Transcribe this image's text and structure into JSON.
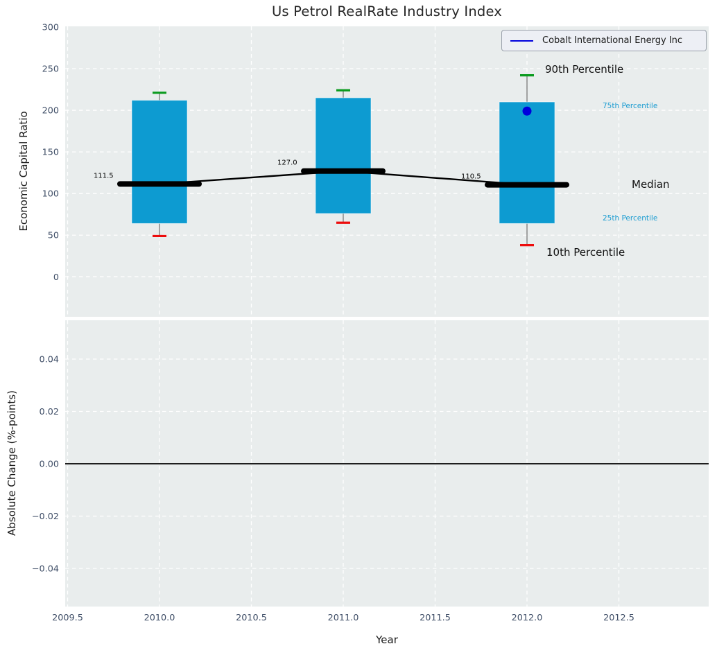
{
  "figure": {
    "title": "Us Petrol RealRate Industry Index"
  },
  "legend": {
    "label": "Cobalt International Energy Inc"
  },
  "annotations": {
    "p90": "90th Percentile",
    "p75": "75th Percentile",
    "median": "Median",
    "p25": "25th Percentile",
    "p10": "10th Percentile"
  },
  "colors": {
    "plot_bg": "#e9eded",
    "grid": "#ffffff",
    "tick_label": "#3e4d66",
    "box_fill": "#0d9bd1",
    "box_edge": "rgba(255,255,255,0.55)",
    "whisker": "#787878",
    "cap_high": "#0a9b1e",
    "cap_low": "#ed0c0c",
    "median_line": "#000000",
    "company": "#0000dd",
    "zero_line": "#000000",
    "percentile_text": "#1b9cd1"
  },
  "chart_data": [
    {
      "type": "boxplot",
      "title": "Us Petrol RealRate Industry Index",
      "ylabel": "Economic Capital Ratio",
      "categories": [
        2010,
        2011,
        2012
      ],
      "series": [
        {
          "name": "90th Percentile",
          "values": [
            221,
            224,
            242
          ]
        },
        {
          "name": "75th Percentile",
          "values": [
            212,
            215,
            210
          ]
        },
        {
          "name": "Median",
          "values": [
            111.5,
            127.0,
            110.5
          ]
        },
        {
          "name": "25th Percentile",
          "values": [
            64,
            76,
            64
          ]
        },
        {
          "name": "10th Percentile",
          "values": [
            49,
            65,
            38
          ]
        },
        {
          "name": "Cobalt International Energy Inc",
          "values": [
            null,
            null,
            199
          ]
        }
      ],
      "median_labels": [
        "111.5",
        "127.0",
        "110.5"
      ],
      "ytick_values": [
        300,
        250,
        200,
        150,
        100,
        50,
        0
      ],
      "ytick_labels": [
        "300",
        "250",
        "200",
        "150",
        "100",
        "50",
        "0"
      ],
      "ylim": [
        -48,
        301
      ],
      "grid": true,
      "legend_position": "upper right"
    },
    {
      "type": "line",
      "xlabel": "Year",
      "ylabel": "Absolute Change (%-points)",
      "ytick_values": [
        0.04,
        0.02,
        0.0,
        -0.02,
        -0.04
      ],
      "ytick_labels": [
        "0.04",
        "0.02",
        "0.00",
        "−0.02",
        "−0.04"
      ],
      "xtick_values": [
        2009.5,
        2010.0,
        2010.5,
        2011.0,
        2011.5,
        2012.0,
        2012.5
      ],
      "xtick_labels": [
        "2009.5",
        "2010.0",
        "2010.5",
        "2011.0",
        "2011.5",
        "2012.0",
        "2012.5"
      ],
      "xlim": [
        2009.49,
        2012.99
      ],
      "ylim": [
        -0.0546,
        0.0548
      ],
      "zero_line": 0.0,
      "series": [],
      "grid": true
    }
  ]
}
